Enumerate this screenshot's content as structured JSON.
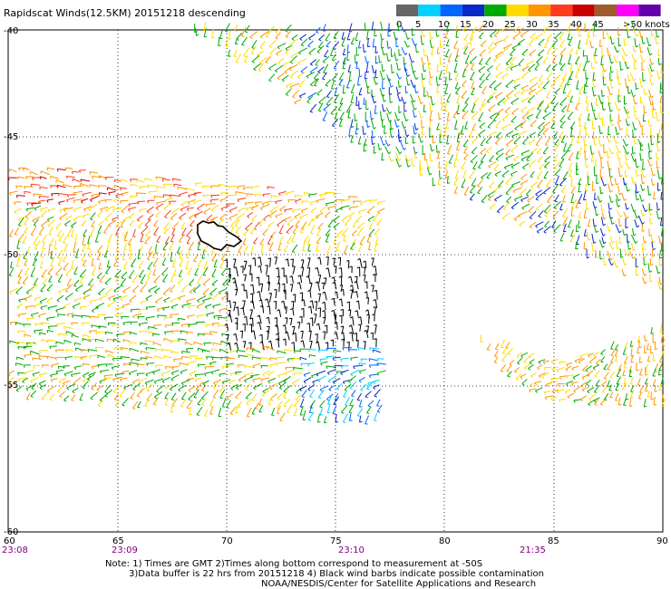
{
  "header": {
    "title": "Rapidscat Winds(12.5KM) 20151218 descending"
  },
  "legend": {
    "colors": [
      "#666666",
      "#00d2ff",
      "#0064ff",
      "#0a28c8",
      "#00aa00",
      "#ffdc00",
      "#ff9600",
      "#ff3c1e",
      "#c80000",
      "#a05a2d",
      "#ff00ff",
      "#6400aa"
    ],
    "labels": [
      "0",
      "5",
      "10",
      "15",
      "20",
      "25",
      "30",
      "35",
      "40",
      "45",
      ">50 knots"
    ]
  },
  "axes": {
    "x_ticks": [
      "60",
      "65",
      "70",
      "75",
      "80",
      "85",
      "90"
    ],
    "y_ticks": [
      "-40",
      "-45",
      "-50",
      "-55",
      "-60"
    ],
    "times": [
      "23:08",
      "23:09",
      "23:10",
      "21:35"
    ]
  },
  "notes": {
    "line1": "Note: 1) Times are GMT 2)Times along bottom correspond to measurement at -50S",
    "line2": "3)Data buffer is 22 hrs from 20151218 4) Black wind barbs indicate possible contamination",
    "line3": "NOAA/NESDIS/Center for Satellite Applications and Research"
  },
  "map": {
    "lon_range": [
      60,
      90
    ],
    "lat_range": [
      -60,
      -40
    ],
    "island_label": ""
  }
}
